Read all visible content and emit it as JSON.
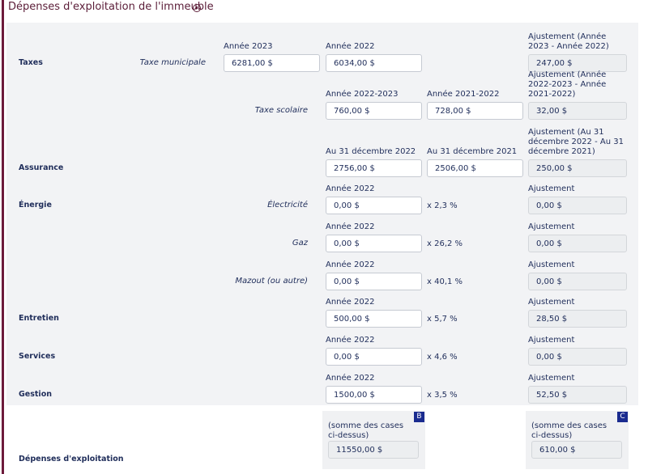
{
  "header": {
    "title": "Dépenses d'exploitation de l'immeuble"
  },
  "rows": [
    {
      "section": "Taxes",
      "item": "Taxe municipale",
      "entry_1": {
        "label": "Année 2023",
        "value": "6281,00 $"
      },
      "entry_2": {
        "label": "Année 2022",
        "value": "6034,00 $"
      },
      "adjustment": {
        "label": "Ajustement (Année 2023 - Année 2022)",
        "value": "247,00 $"
      }
    },
    {
      "item": "Taxe scolaire",
      "entry_2": {
        "label": "Année 2022-2023",
        "value": "760,00 $"
      },
      "entry_3": {
        "label": "Année 2021-2022",
        "value": "728,00 $"
      },
      "adjustment": {
        "label": "Ajustement (Année 2022-2023 - Année 2021-2022)",
        "value": "32,00 $"
      }
    },
    {
      "section": "Assurance",
      "entry_2": {
        "label": "Au 31 décembre 2022",
        "value": "2756,00 $"
      },
      "entry_3": {
        "label": "Au 31 décembre 2021",
        "value": "2506,00 $"
      },
      "adjustment": {
        "label": "Ajustement (Au 31 décembre 2022 - Au 31 décembre 2021)",
        "value": "250,00 $"
      }
    },
    {
      "section": "Énergie",
      "item": "Électricité",
      "entry_2": {
        "label": "Année 2022",
        "value": "0,00 $"
      },
      "rate": "x 2,3 %",
      "adjustment": {
        "label": "Ajustement",
        "value": "0,00 $"
      }
    },
    {
      "item": "Gaz",
      "entry_2": {
        "label": "Année 2022",
        "value": "0,00 $"
      },
      "rate": "x 26,2 %",
      "adjustment": {
        "label": "Ajustement",
        "value": "0,00 $"
      }
    },
    {
      "item": "Mazout (ou autre)",
      "entry_2": {
        "label": "Année 2022",
        "value": "0,00 $"
      },
      "rate": "x 40,1 %",
      "adjustment": {
        "label": "Ajustement",
        "value": "0,00 $"
      }
    },
    {
      "section": "Entretien",
      "entry_2": {
        "label": "Année 2022",
        "value": "500,00 $"
      },
      "rate": "x 5,7 %",
      "adjustment": {
        "label": "Ajustement",
        "value": "28,50 $"
      }
    },
    {
      "section": "Services",
      "entry_2": {
        "label": "Année 2022",
        "value": "0,00 $"
      },
      "rate": "x 4,6 %",
      "adjustment": {
        "label": "Ajustement",
        "value": "0,00 $"
      }
    },
    {
      "section": "Gestion",
      "entry_2": {
        "label": "Année 2022",
        "value": "1500,00 $"
      },
      "rate": "x 3,5 %",
      "adjustment": {
        "label": "Ajustement",
        "value": "52,50 $"
      }
    }
  ],
  "total": {
    "label": "Dépenses d'exploitation",
    "boxes": [
      {
        "badge": "B",
        "note": "(somme des cases ci-dessus)",
        "value": "11550,00 $"
      },
      {
        "badge": "C",
        "note": "(somme des cases ci-dessus)",
        "value": "610,00 $"
      }
    ]
  }
}
